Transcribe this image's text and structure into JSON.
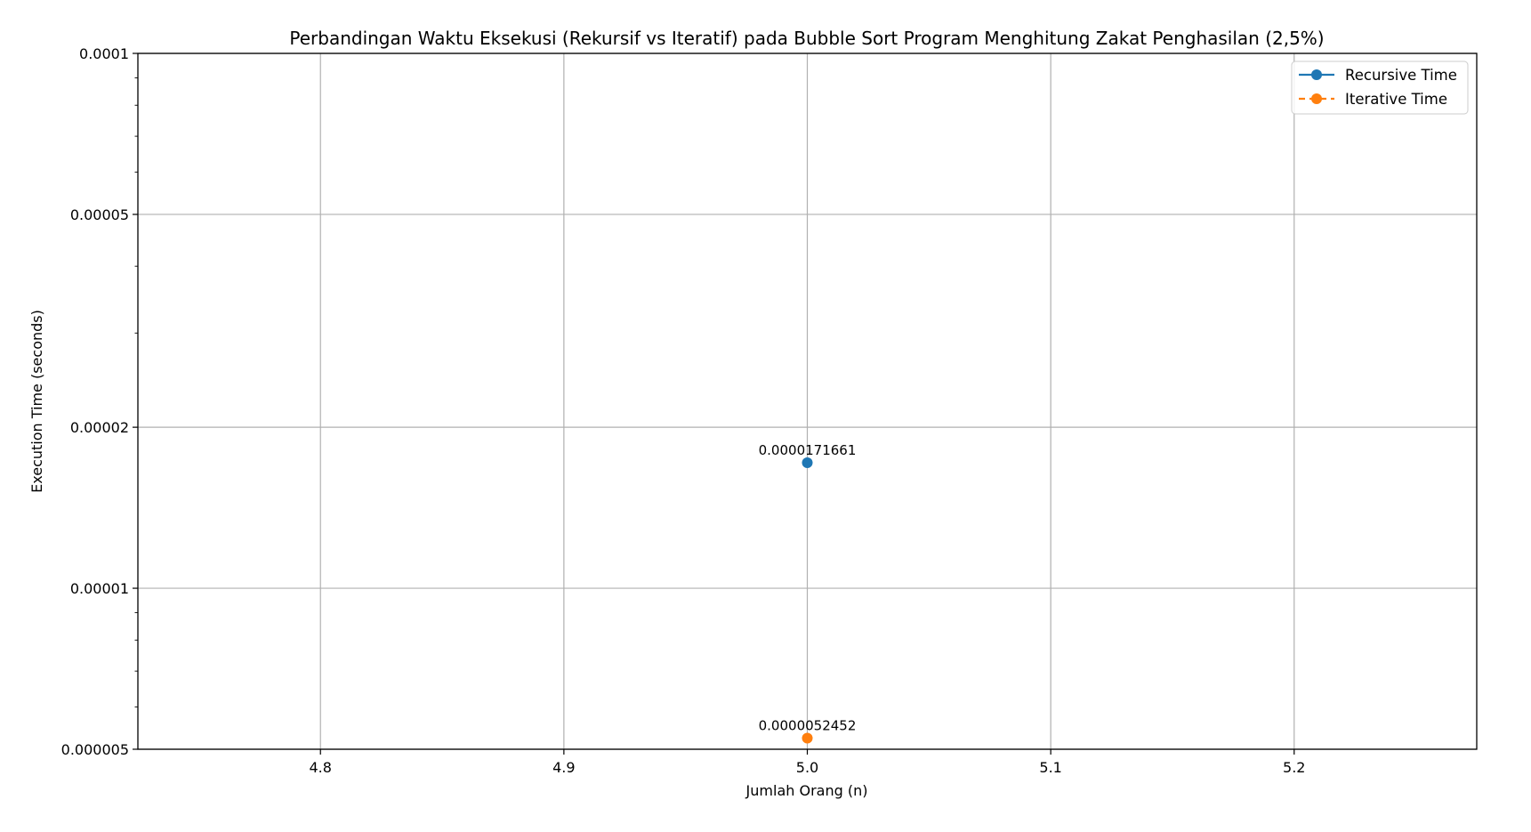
{
  "chart_data": {
    "type": "line",
    "title": "Perbandingan Waktu Eksekusi (Rekursif vs Iteratif) pada Bubble Sort Program Menghitung Zakat Penghasilan (2,5%)",
    "xlabel": "Jumlah Orang (n)",
    "ylabel": "Execution Time (seconds)",
    "x_scale": "linear",
    "y_scale": "log",
    "xlim": [
      4.725,
      5.275
    ],
    "ylim": [
      5e-06,
      0.0001
    ],
    "x_ticks": [
      4.8,
      4.9,
      5.0,
      5.1,
      5.2
    ],
    "x_tick_labels": [
      "4.8",
      "4.9",
      "5.0",
      "5.1",
      "5.2"
    ],
    "y_ticks": [
      5e-06,
      1e-05,
      2e-05,
      5e-05,
      0.0001
    ],
    "y_tick_labels": [
      "0.000005",
      "0.00001",
      "0.00002",
      "0.00005",
      "0.0001"
    ],
    "grid": true,
    "legend_position": "top-right",
    "series": [
      {
        "name": "Recursive Time",
        "color": "#1f77b4",
        "linestyle": "solid",
        "marker": "circle",
        "x": [
          5.0
        ],
        "y": [
          1.71661e-05
        ],
        "labels": [
          "0.0000171661"
        ]
      },
      {
        "name": "Iterative Time",
        "color": "#ff7f0e",
        "linestyle": "dashed",
        "marker": "circle",
        "x": [
          5.0
        ],
        "y": [
          5.2452e-06
        ],
        "labels": [
          "0.0000052452"
        ]
      }
    ]
  }
}
